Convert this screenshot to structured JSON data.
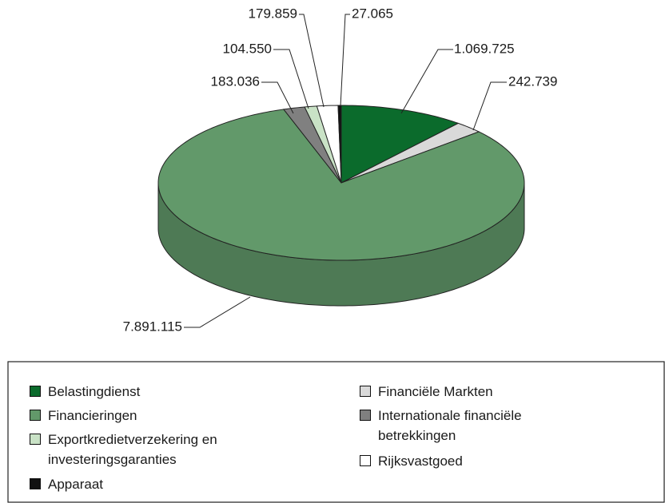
{
  "chart_data": {
    "type": "pie3d",
    "categories": [
      "Belastingdienst",
      "Financiële Markten",
      "Financieringen",
      "Internationale financiële betrekkingen",
      "Exportkredietverzekering en investeringsgaranties",
      "Rijksvastgoed",
      "Apparaat"
    ],
    "values": [
      1069725,
      242739,
      7891115,
      183036,
      104550,
      179859,
      27065
    ],
    "value_labels": [
      "1.069.725",
      "242.739",
      "7.891.115",
      "183.036",
      "104.550",
      "179.859",
      "27.065"
    ],
    "colors": [
      "#0b6b2c",
      "#d9d9d9",
      "#62996a",
      "#808080",
      "#c9e2c6",
      "#ffffff",
      "#111111"
    ]
  }
}
